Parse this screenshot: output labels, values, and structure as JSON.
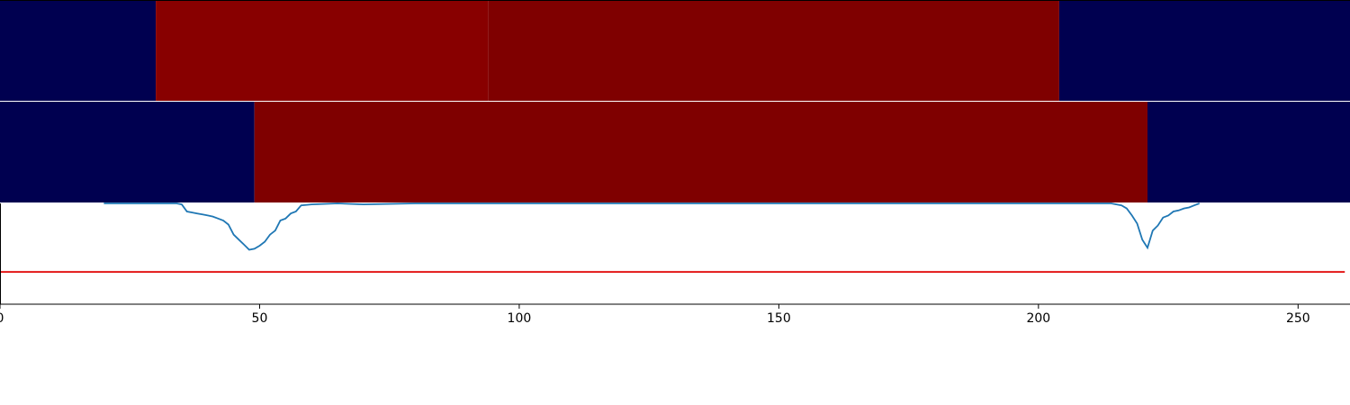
{
  "chart_data": {
    "type": "heatmap",
    "title": "",
    "xlabel": "",
    "ylabel": "",
    "xlim": [
      0,
      260
    ],
    "x_ticks": [
      0,
      50,
      100,
      150,
      200,
      250
    ],
    "x_tick_labels": [
      "0",
      "50",
      "100",
      "150",
      "200",
      "250"
    ],
    "grid": false,
    "legend": "none",
    "colors": {
      "low": "#000050",
      "high_a": "#880000",
      "high_b": "#7f0000",
      "line": "#1f77b4",
      "threshold": "#e00000",
      "axis": "#000000"
    },
    "heatmap_rows": [
      {
        "segments": [
          {
            "x0": 0,
            "x1": 30,
            "level": "low"
          },
          {
            "x0": 30,
            "x1": 94,
            "level": "high_a"
          },
          {
            "x0": 94,
            "x1": 204,
            "level": "high_b"
          },
          {
            "x0": 204,
            "x1": 260,
            "level": "low"
          }
        ]
      },
      {
        "segments": [
          {
            "x0": 0,
            "x1": 49,
            "level": "low"
          },
          {
            "x0": 49,
            "x1": 221,
            "level": "high_b"
          },
          {
            "x0": 221,
            "x1": 260,
            "level": "low"
          }
        ]
      }
    ],
    "series": [
      {
        "type": "line",
        "ylim": [
          -1,
          0
        ],
        "x": [
          20,
          24,
          28,
          32,
          34,
          35,
          36,
          37,
          38,
          39,
          40,
          41,
          42,
          43,
          44,
          45,
          46,
          47,
          48,
          49,
          50,
          51,
          52,
          53,
          54,
          55,
          56,
          57,
          58,
          60,
          65,
          70,
          80,
          100,
          150,
          200,
          210,
          214,
          215,
          216,
          217,
          218,
          219,
          220,
          221,
          222,
          223,
          224,
          225,
          226,
          227,
          228,
          229,
          230,
          231
        ],
        "y": [
          0.0,
          0.0,
          0.0,
          0.0,
          0.0,
          -0.01,
          -0.08,
          -0.09,
          -0.1,
          -0.11,
          -0.12,
          -0.13,
          -0.15,
          -0.17,
          -0.21,
          -0.31,
          -0.36,
          -0.41,
          -0.46,
          -0.45,
          -0.42,
          -0.38,
          -0.31,
          -0.27,
          -0.17,
          -0.15,
          -0.1,
          -0.08,
          -0.02,
          -0.01,
          0.0,
          -0.01,
          0.0,
          0.0,
          0.0,
          0.0,
          0.0,
          0.0,
          -0.01,
          -0.02,
          -0.05,
          -0.12,
          -0.2,
          -0.36,
          -0.44,
          -0.27,
          -0.22,
          -0.14,
          -0.12,
          -0.08,
          -0.07,
          -0.05,
          -0.04,
          -0.02,
          0.0
        ]
      },
      {
        "type": "hline",
        "ylim": [
          -1,
          0
        ],
        "y": -0.68,
        "x0": 0,
        "x1": 259
      }
    ]
  }
}
